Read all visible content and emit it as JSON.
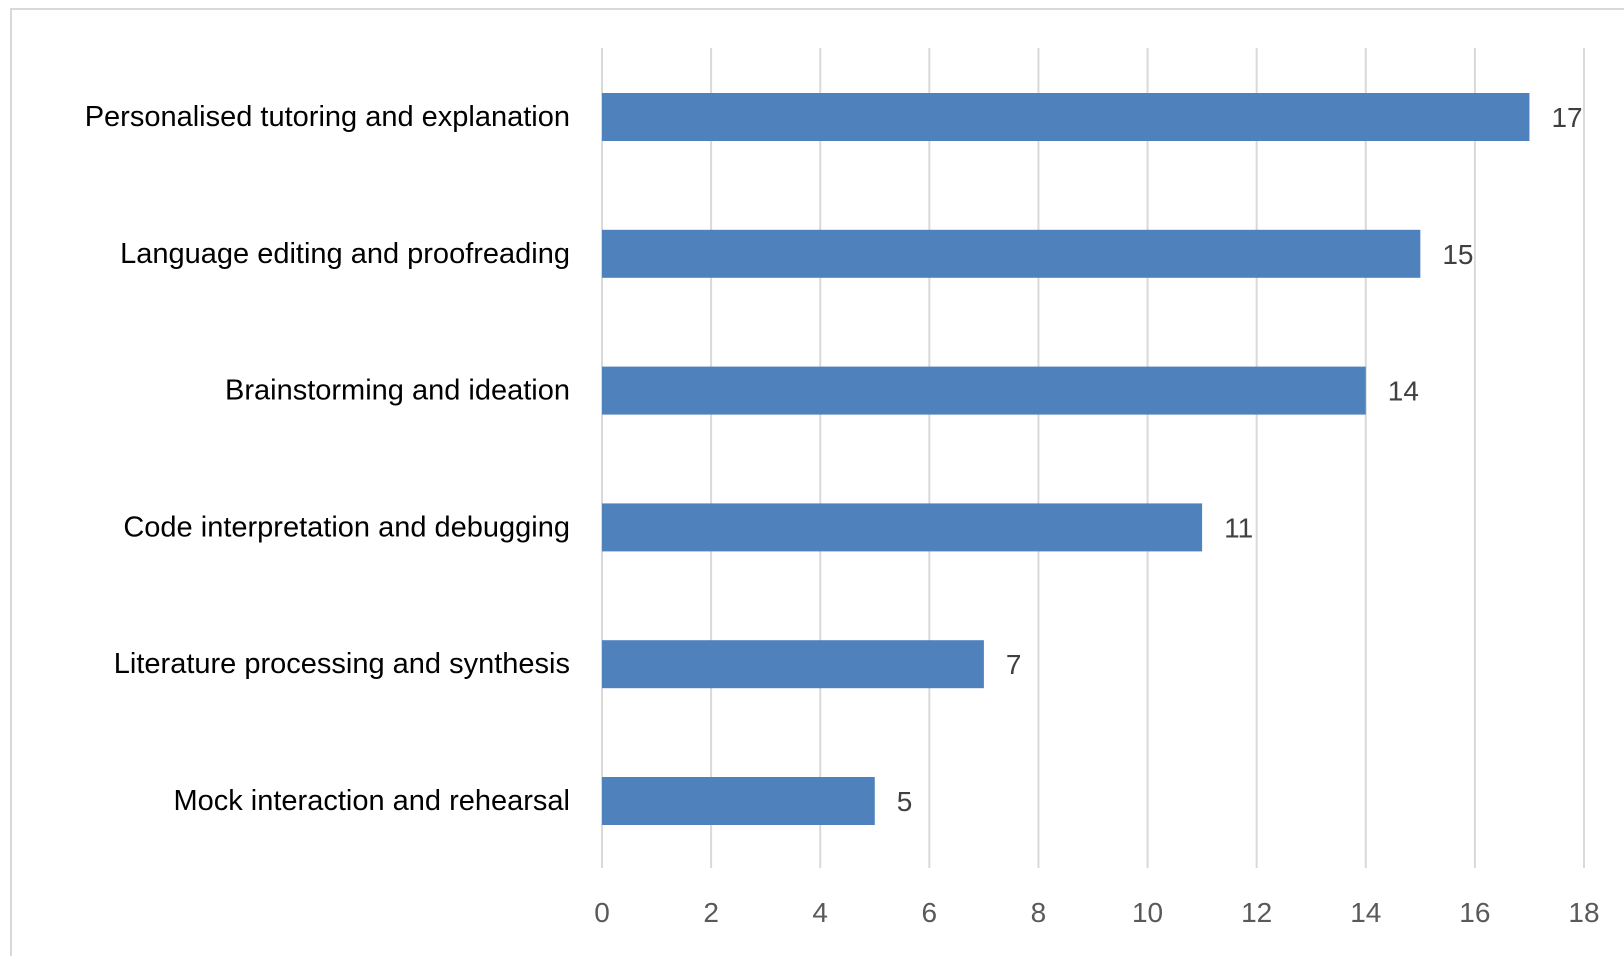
{
  "chart_data": {
    "type": "bar",
    "orientation": "horizontal",
    "categories": [
      "Personalised tutoring and explanation",
      "Language editing and proofreading",
      "Brainstorming and ideation",
      "Code interpretation and debugging",
      "Literature processing and synthesis",
      "Mock interaction and rehearsal"
    ],
    "values": [
      17,
      15,
      14,
      11,
      7,
      5
    ],
    "x_ticks": [
      "0",
      "2",
      "4",
      "6",
      "8",
      "10",
      "12",
      "14",
      "16",
      "18"
    ],
    "xlim": [
      0,
      18
    ],
    "grid": "vertical",
    "bar_color": "#4f81bd",
    "show_data_labels": true,
    "legend": "none"
  }
}
